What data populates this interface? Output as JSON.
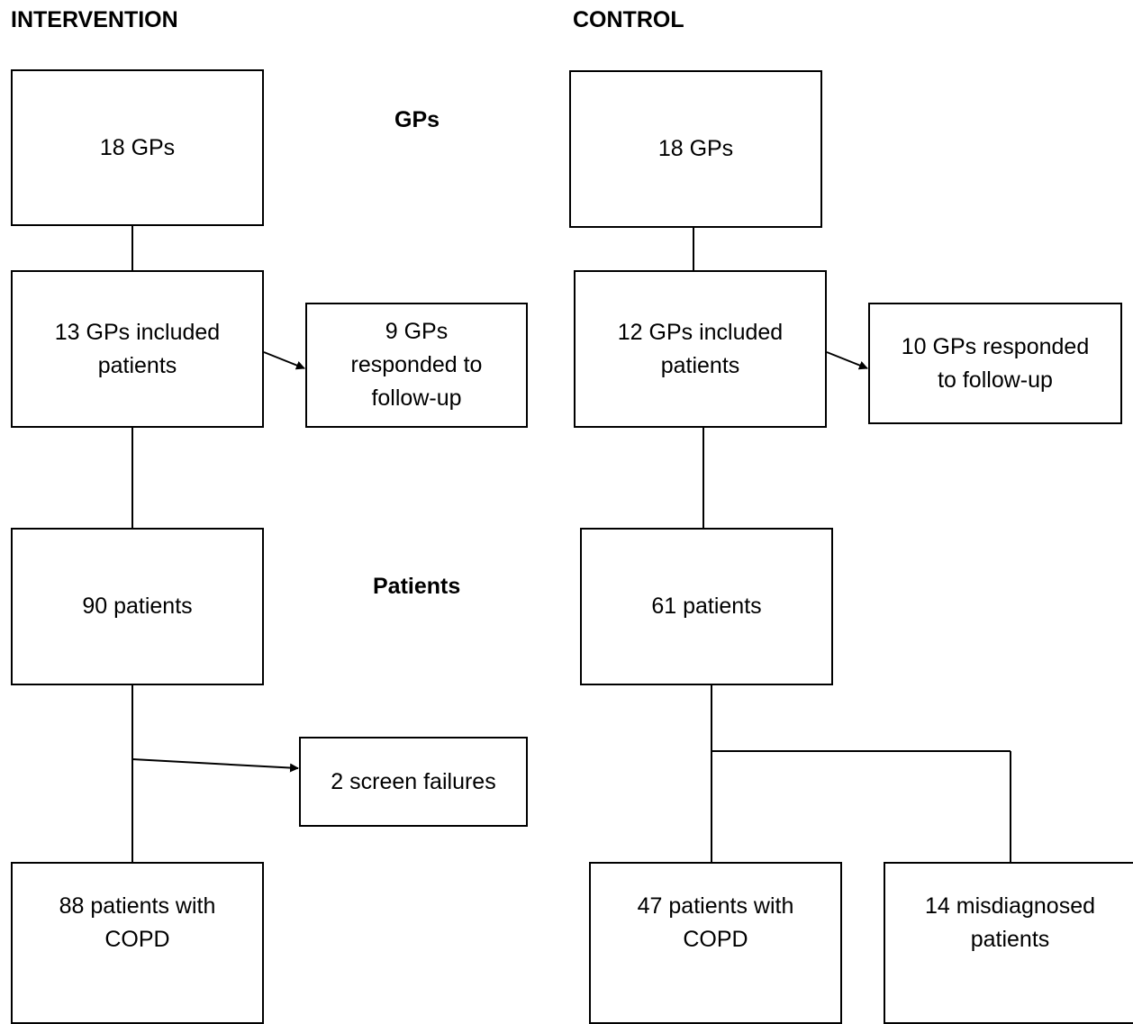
{
  "headers": {
    "intervention": "INTERVENTION",
    "control": "CONTROL",
    "gps_section": "GPs",
    "patients_section": "Patients"
  },
  "intervention": {
    "gps_total": "18 GPs",
    "gps_included": "13 GPs included\npatients",
    "gps_followup": "9 GPs\nresponded to\nfollow-up",
    "patients_total": "90 patients",
    "screen_failures": "2 screen failures",
    "patients_copd": "88 patients with\nCOPD"
  },
  "control": {
    "gps_total": "18 GPs",
    "gps_included": "12 GPs included\npatients",
    "gps_followup": "10 GPs responded\nto follow-up",
    "patients_total": "61 patients",
    "patients_copd": "47 patients with\nCOPD",
    "misdiagnosed": "14 misdiagnosed\npatients"
  }
}
